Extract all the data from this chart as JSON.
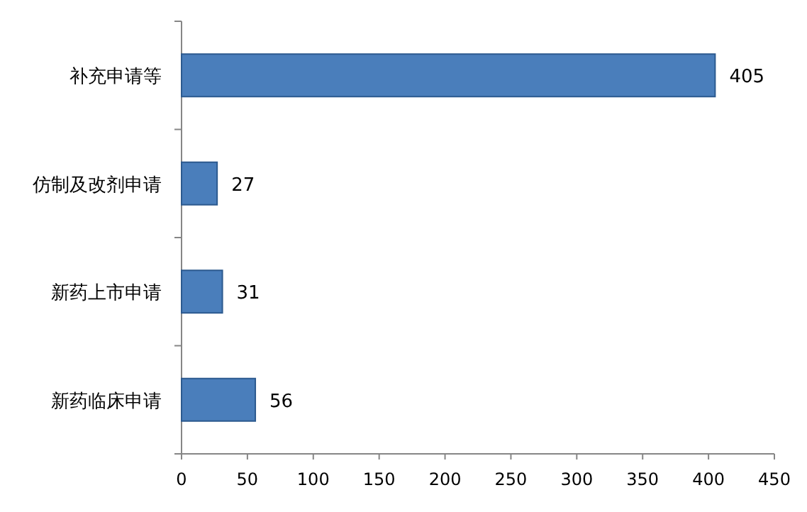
{
  "chart_data": {
    "type": "bar",
    "orientation": "horizontal",
    "categories": [
      "补充申请等",
      "仿制及改剂申请",
      "新药上市申请",
      "新药临床申请"
    ],
    "values": [
      405,
      27,
      31,
      56
    ],
    "color": "#4a7ebb",
    "xlim": [
      0,
      450
    ],
    "xticks": [
      0,
      50,
      100,
      150,
      200,
      250,
      300,
      350,
      400,
      450
    ],
    "data_labels": true
  }
}
